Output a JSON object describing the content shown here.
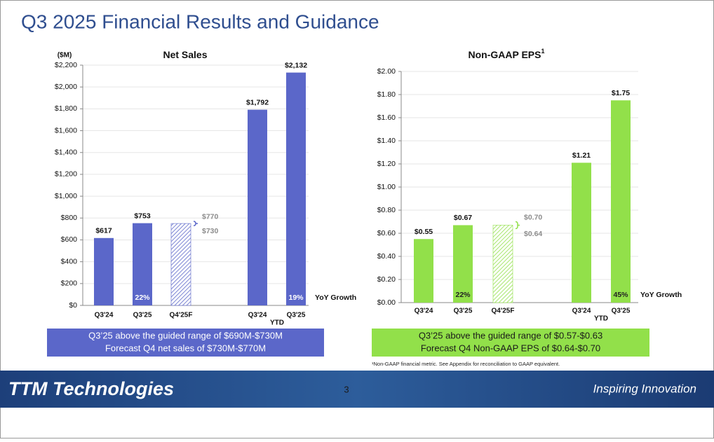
{
  "title": "Q3 2025 Financial Results and Guidance",
  "chart_data": [
    {
      "type": "bar",
      "title": "Net Sales",
      "y_label": "($M)",
      "color": "#5b67c9",
      "categories": [
        "Q3'24",
        "Q3'25",
        "Q4'25F",
        "Q3'24",
        "Q3'25"
      ],
      "group_label": "YTD",
      "values": [
        617,
        753,
        750,
        1792,
        2132
      ],
      "value_labels": [
        "$617",
        "$753",
        null,
        "$1,792",
        "$2,132"
      ],
      "hatched": [
        false,
        false,
        true,
        false,
        false
      ],
      "guidance": {
        "high": {
          "value": 770,
          "label": "$770"
        },
        "low": {
          "value": 730,
          "label": "$730"
        }
      },
      "growth": {
        "label": "YoY Growth",
        "values": [
          null,
          22,
          null,
          null,
          19
        ],
        "value_labels": [
          null,
          "22%",
          null,
          null,
          "19%"
        ]
      },
      "ylim": [
        0,
        2200
      ],
      "yticks": [
        {
          "value": 0,
          "label": "$0"
        },
        {
          "value": 200,
          "label": "$200"
        },
        {
          "value": 400,
          "label": "$400"
        },
        {
          "value": 600,
          "label": "$600"
        },
        {
          "value": 800,
          "label": "$800"
        },
        {
          "value": 1000,
          "label": "$1,000"
        },
        {
          "value": 1200,
          "label": "$1,200"
        },
        {
          "value": 1400,
          "label": "$1,400"
        },
        {
          "value": 1600,
          "label": "$1,600"
        },
        {
          "value": 1800,
          "label": "$1,800"
        },
        {
          "value": 2000,
          "label": "$2,000"
        },
        {
          "value": 2200,
          "label": "$2,200"
        }
      ],
      "grid": true
    },
    {
      "type": "bar",
      "title": "Non-GAAP EPS",
      "title_sup": "1",
      "color": "#92e04a",
      "categories": [
        "Q3'24",
        "Q3'25",
        "Q4'25F",
        "Q3'24",
        "Q3'25"
      ],
      "group_label": "YTD",
      "values": [
        0.55,
        0.67,
        0.67,
        1.21,
        1.75
      ],
      "value_labels": [
        "$0.55",
        "$0.67",
        null,
        "$1.21",
        "$1.75"
      ],
      "hatched": [
        false,
        false,
        true,
        false,
        false
      ],
      "guidance": {
        "high": {
          "value": 0.7,
          "label": "$0.70"
        },
        "low": {
          "value": 0.64,
          "label": "$0.64"
        }
      },
      "growth": {
        "label": "YoY Growth",
        "values": [
          null,
          22,
          null,
          null,
          45
        ],
        "value_labels": [
          null,
          "22%",
          null,
          null,
          "45%"
        ]
      },
      "ylim": [
        0,
        2
      ],
      "yticks": [
        {
          "value": 0,
          "label": "$0.00"
        },
        {
          "value": 0.2,
          "label": "$0.20"
        },
        {
          "value": 0.4,
          "label": "$0.40"
        },
        {
          "value": 0.6,
          "label": "$0.60"
        },
        {
          "value": 0.8,
          "label": "$0.80"
        },
        {
          "value": 1,
          "label": "$1.00"
        },
        {
          "value": 1.2,
          "label": "$1.20"
        },
        {
          "value": 1.4,
          "label": "$1.40"
        },
        {
          "value": 1.6,
          "label": "$1.60"
        },
        {
          "value": 1.8,
          "label": "$1.80"
        },
        {
          "value": 2,
          "label": "$2.00"
        }
      ],
      "grid": true
    }
  ],
  "callouts": [
    {
      "lines": [
        "Q3’25 above the guided range of $690M-$730M",
        "Forecast Q4 net sales of $730M-$770M"
      ]
    },
    {
      "lines": [
        "Q3’25 above the guided range of $0.57-$0.63",
        "Forecast Q4 Non-GAAP EPS of $0.64-$0.70"
      ]
    }
  ],
  "footnote": "¹Non-GAAP financial metric. See Appendix for reconciliation to GAAP equivalent.",
  "footer": {
    "logo": "TTM Technologies",
    "page": "3",
    "tagline": "Inspiring Innovation"
  }
}
